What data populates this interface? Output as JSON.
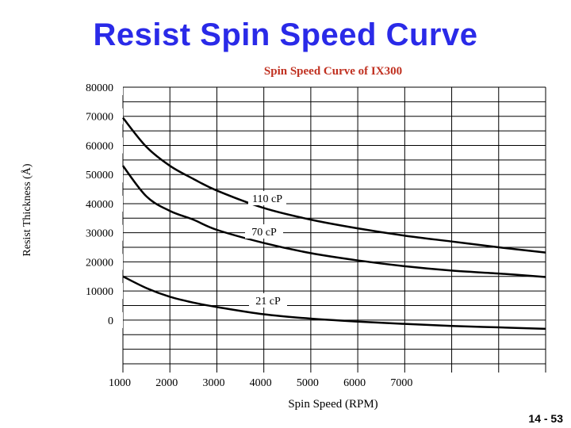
{
  "slide": {
    "title": "Resist Spin Speed Curve",
    "page_number": "14 - 53"
  },
  "colors": {
    "title": "#2a2ae8",
    "chart_title": "#c03020",
    "grid": "#000000",
    "series": "#000000"
  },
  "chart_data": {
    "type": "line",
    "title": "Spin Speed Curve of IX300",
    "xlabel": "Spin Speed (RPM)",
    "ylabel": "Resist Thickness (Å)",
    "xlim": [
      1000,
      10000
    ],
    "ylim": [
      -18000,
      80000
    ],
    "x_ticks": [
      1000,
      2000,
      3000,
      4000,
      5000,
      6000,
      7000
    ],
    "y_ticks": [
      0,
      10000,
      20000,
      30000,
      40000,
      50000,
      60000,
      70000,
      80000
    ],
    "grid": true,
    "series": [
      {
        "name": "110 cP",
        "x": [
          1000,
          1500,
          2000,
          2500,
          3000,
          4000,
          5000,
          6000,
          7000,
          8000,
          9000,
          10000
        ],
        "y": [
          69500,
          59500,
          53000,
          48500,
          44500,
          38500,
          34500,
          31500,
          29000,
          27000,
          25000,
          23200
        ]
      },
      {
        "name": "70 cP",
        "x": [
          1000,
          1500,
          2000,
          2500,
          3000,
          4000,
          5000,
          6000,
          7000,
          8000,
          9000,
          10000
        ],
        "y": [
          53000,
          42500,
          37500,
          34500,
          31000,
          26500,
          23000,
          20500,
          18500,
          17000,
          16000,
          14800
        ]
      },
      {
        "name": "21 cP",
        "x": [
          1000,
          1500,
          2000,
          2500,
          3000,
          4000,
          5000,
          6000,
          7000,
          8000,
          9000,
          10000
        ],
        "y": [
          15000,
          11000,
          8000,
          6000,
          4500,
          2000,
          500,
          -500,
          -1300,
          -2000,
          -2500,
          -3000
        ]
      }
    ],
    "annotations": [
      "110 cP",
      "70 cP",
      "21 cP"
    ]
  }
}
